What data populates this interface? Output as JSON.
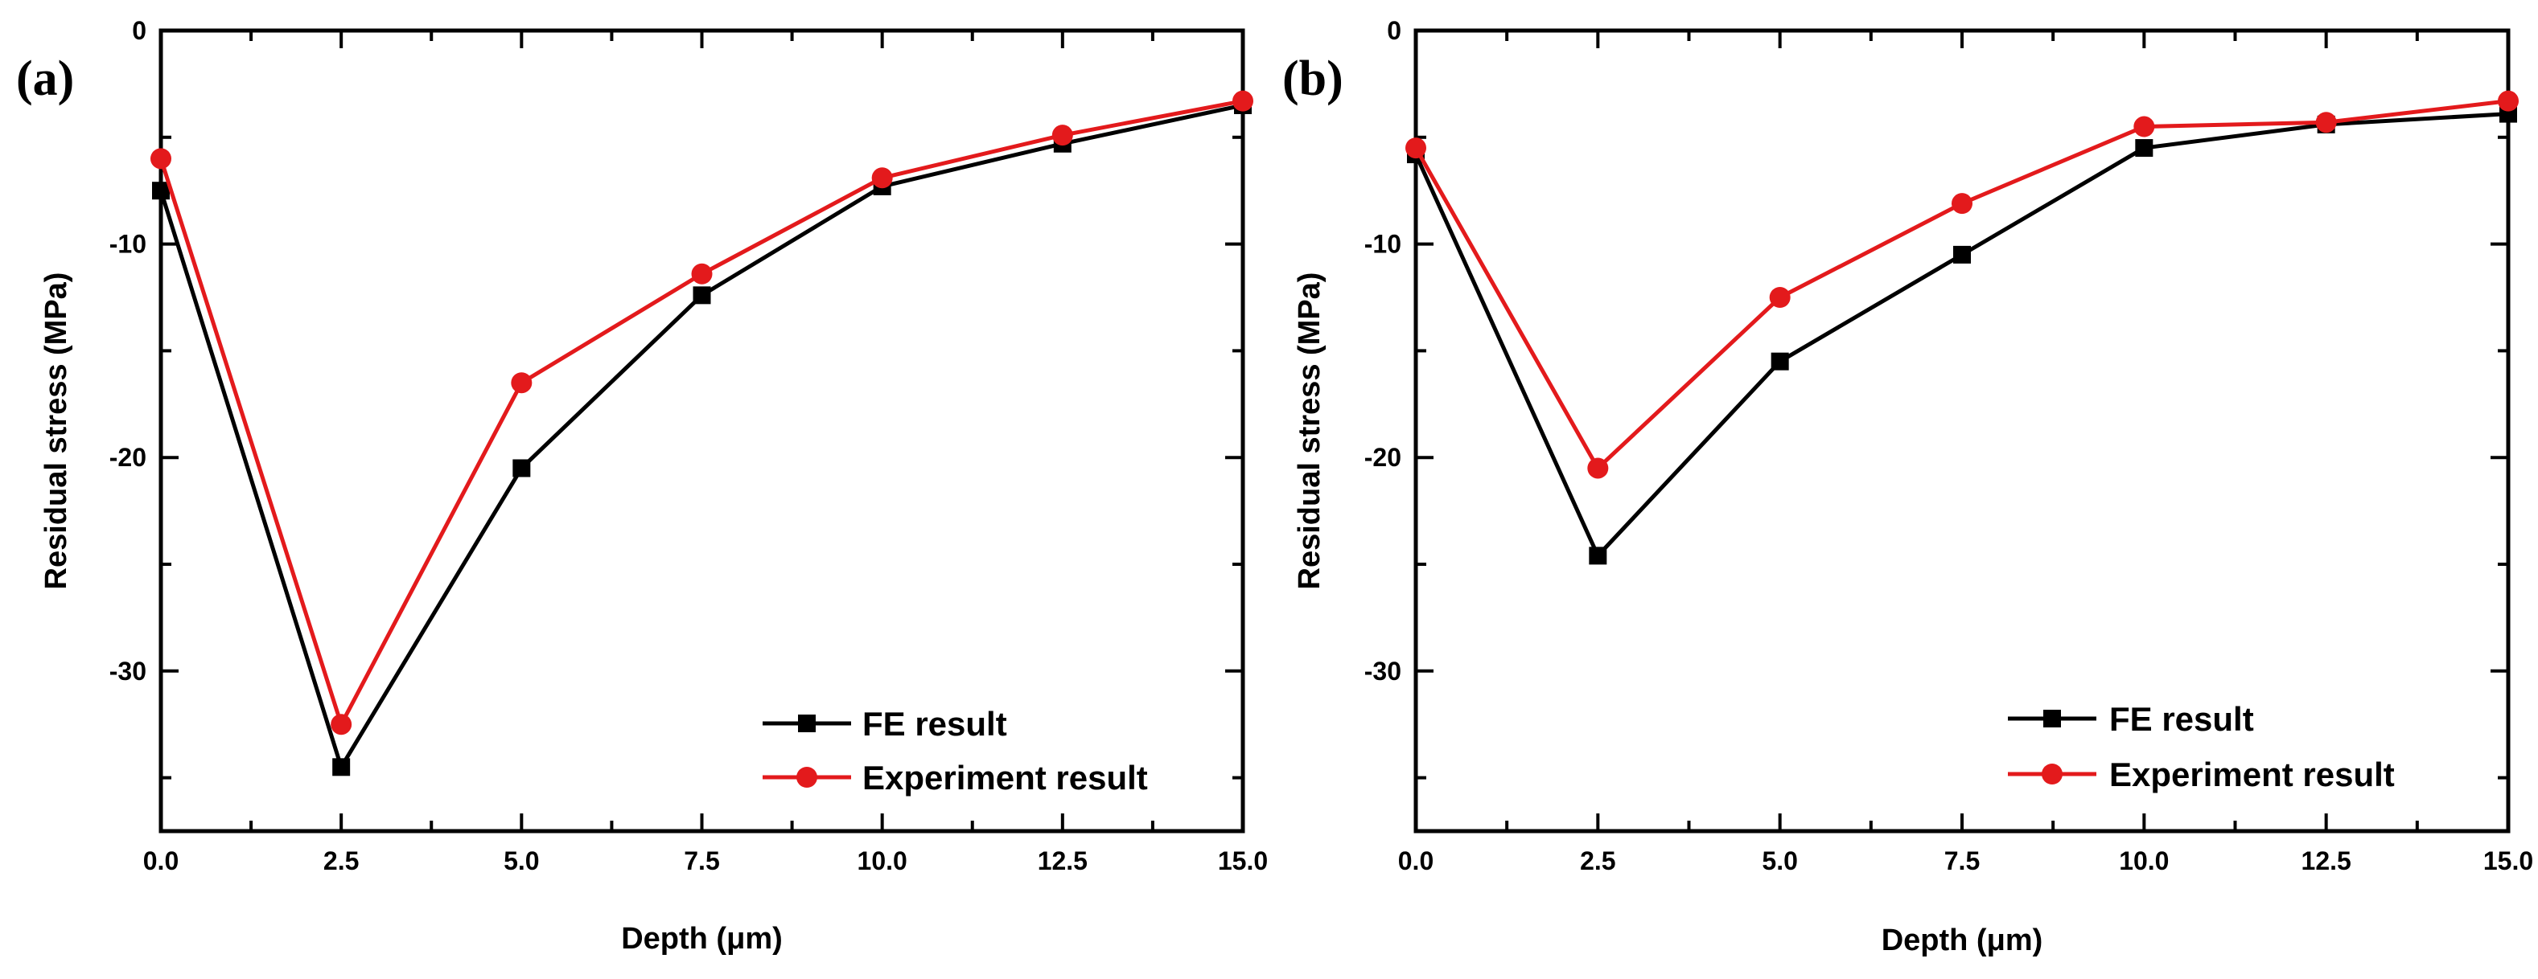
{
  "colors": {
    "fe": "#000000",
    "experiment": "#e31a1c",
    "axis": "#000000"
  },
  "chart_data": [
    {
      "type": "line",
      "panel_label": "(a)",
      "xlabel": "Depth (μm)",
      "ylabel": "Residual stress (MPa)",
      "xlim": [
        0,
        15
      ],
      "ylim": [
        -37.5,
        0
      ],
      "x_ticks": [
        "0.0",
        "2.5",
        "5.0",
        "7.5",
        "10.0",
        "12.5",
        "15.0"
      ],
      "y_ticks": [
        "0",
        "-10",
        "-20",
        "-30"
      ],
      "x": [
        0,
        2.5,
        5,
        7.5,
        10,
        12.5,
        15
      ],
      "series": [
        {
          "name": "FE result",
          "marker": "square",
          "values": [
            -7.5,
            -34.5,
            -20.5,
            -12.4,
            -7.3,
            -5.3,
            -3.5
          ]
        },
        {
          "name": "Experiment result",
          "marker": "circle",
          "values": [
            -6.0,
            -32.5,
            -16.5,
            -11.4,
            -6.9,
            -4.9,
            -3.3
          ]
        }
      ],
      "legend_position": "bottom-right",
      "grid": false
    },
    {
      "type": "line",
      "panel_label": "(b)",
      "xlabel": "Depth (μm)",
      "ylabel": "Residual stress (MPa)",
      "xlim": [
        0,
        15
      ],
      "ylim": [
        -37.5,
        0
      ],
      "x_ticks": [
        "0.0",
        "2.5",
        "5.0",
        "7.5",
        "10.0",
        "12.5",
        "15.0"
      ],
      "y_ticks": [
        "0",
        "-10",
        "-20",
        "-30"
      ],
      "x": [
        0,
        2.5,
        5,
        7.5,
        10,
        12.5,
        15
      ],
      "series": [
        {
          "name": "FE result",
          "marker": "square",
          "values": [
            -5.8,
            -24.6,
            -15.5,
            -10.5,
            -5.5,
            -4.4,
            -3.9
          ]
        },
        {
          "name": "Experiment result",
          "marker": "circle",
          "values": [
            -5.5,
            -20.5,
            -12.5,
            -8.1,
            -4.5,
            -4.3,
            -3.3
          ]
        }
      ],
      "legend_position": "bottom-right",
      "grid": false
    }
  ]
}
